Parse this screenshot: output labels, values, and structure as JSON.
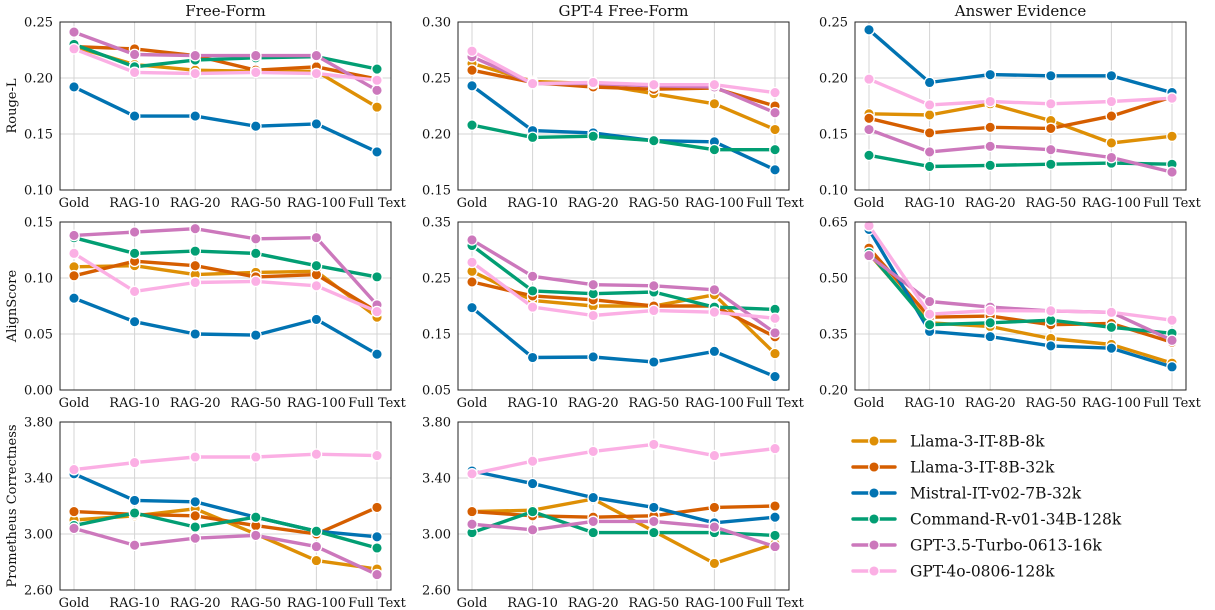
{
  "colors": {
    "Llama-3-IT-8B-8k": "#de8f05",
    "Llama-3-IT-8B-32k": "#d55e00",
    "Mistral-IT-v02-7B-32k": "#0173b2",
    "Command-R-v01-34B-128k": "#029e73",
    "GPT-3.5-Turbo-0613-16k": "#cc78bc",
    "GPT-4o-0806-128k": "#fbafe4"
  },
  "legend": [
    "Llama-3-IT-8B-8k",
    "Llama-3-IT-8B-32k",
    "Mistral-IT-v02-7B-32k",
    "Command-R-v01-34B-128k",
    "GPT-3.5-Turbo-0613-16k",
    "GPT-4o-0806-128k"
  ],
  "chart_data": [
    {
      "type": "line",
      "title": "Free-Form",
      "ylabel": "Rouge-L",
      "grid": true,
      "categories": [
        "Gold",
        "RAG-10",
        "RAG-20",
        "RAG-50",
        "RAG-100",
        "Full Text"
      ],
      "ylim": [
        0.1,
        0.25
      ],
      "yticks": [
        "0.10",
        "0.15",
        "0.20",
        "0.25"
      ],
      "series": [
        {
          "name": "Llama-3-IT-8B-8k",
          "values": [
            0.228,
            0.212,
            0.207,
            0.206,
            0.206,
            0.174
          ]
        },
        {
          "name": "Llama-3-IT-8B-32k",
          "values": [
            0.228,
            0.226,
            0.22,
            0.207,
            0.21,
            0.199
          ]
        },
        {
          "name": "Mistral-IT-v02-7B-32k",
          "values": [
            0.192,
            0.166,
            0.166,
            0.157,
            0.159,
            0.134
          ]
        },
        {
          "name": "Command-R-v01-34B-128k",
          "values": [
            0.23,
            0.21,
            0.216,
            0.218,
            0.219,
            0.208
          ]
        },
        {
          "name": "GPT-3.5-Turbo-0613-16k",
          "values": [
            0.241,
            0.221,
            0.22,
            0.22,
            0.22,
            0.189
          ]
        },
        {
          "name": "GPT-4o-0806-128k",
          "values": [
            0.226,
            0.205,
            0.204,
            0.205,
            0.204,
            0.198
          ]
        }
      ]
    },
    {
      "type": "line",
      "title": "GPT-4 Free-Form",
      "ylabel": "",
      "grid": true,
      "categories": [
        "Gold",
        "RAG-10",
        "RAG-20",
        "RAG-50",
        "RAG-100",
        "Full Text"
      ],
      "ylim": [
        0.15,
        0.3
      ],
      "yticks": [
        "0.15",
        "0.20",
        "0.25",
        "0.30"
      ],
      "series": [
        {
          "name": "Llama-3-IT-8B-8k",
          "values": [
            0.263,
            0.247,
            0.245,
            0.236,
            0.227,
            0.204
          ]
        },
        {
          "name": "Llama-3-IT-8B-32k",
          "values": [
            0.257,
            0.246,
            0.242,
            0.24,
            0.241,
            0.225
          ]
        },
        {
          "name": "Mistral-IT-v02-7B-32k",
          "values": [
            0.243,
            0.203,
            0.201,
            0.194,
            0.193,
            0.168
          ]
        },
        {
          "name": "Command-R-v01-34B-128k",
          "values": [
            0.208,
            0.197,
            0.198,
            0.194,
            0.186,
            0.186
          ]
        },
        {
          "name": "GPT-3.5-Turbo-0613-16k",
          "values": [
            0.269,
            0.245,
            0.245,
            0.243,
            0.242,
            0.219
          ]
        },
        {
          "name": "GPT-4o-0806-128k",
          "values": [
            0.274,
            0.245,
            0.246,
            0.244,
            0.244,
            0.237
          ]
        }
      ]
    },
    {
      "type": "line",
      "title": "Answer Evidence",
      "ylabel": "",
      "grid": true,
      "categories": [
        "Gold",
        "RAG-10",
        "RAG-20",
        "RAG-50",
        "RAG-100",
        "Full Text"
      ],
      "ylim": [
        0.1,
        0.25
      ],
      "yticks": [
        "0.10",
        "0.15",
        "0.20",
        "0.25"
      ],
      "series": [
        {
          "name": "Llama-3-IT-8B-8k",
          "values": [
            0.168,
            0.167,
            0.177,
            0.162,
            0.142,
            0.148
          ]
        },
        {
          "name": "Llama-3-IT-8B-32k",
          "values": [
            0.164,
            0.151,
            0.156,
            0.155,
            0.166,
            0.183
          ]
        },
        {
          "name": "Mistral-IT-v02-7B-32k",
          "values": [
            0.243,
            0.196,
            0.203,
            0.202,
            0.202,
            0.187
          ]
        },
        {
          "name": "Command-R-v01-34B-128k",
          "values": [
            0.131,
            0.121,
            0.122,
            0.123,
            0.124,
            0.123
          ]
        },
        {
          "name": "GPT-3.5-Turbo-0613-16k",
          "values": [
            0.154,
            0.134,
            0.139,
            0.136,
            0.129,
            0.116
          ]
        },
        {
          "name": "GPT-4o-0806-128k",
          "values": [
            0.199,
            0.176,
            0.179,
            0.177,
            0.179,
            0.182
          ]
        }
      ]
    },
    {
      "type": "line",
      "title": "",
      "ylabel": "AlignScore",
      "grid": true,
      "categories": [
        "Gold",
        "RAG-10",
        "RAG-20",
        "RAG-50",
        "RAG-100",
        "Full Text"
      ],
      "ylim": [
        0.0,
        0.15
      ],
      "yticks": [
        "0.00",
        "0.05",
        "0.10",
        "0.15"
      ],
      "series": [
        {
          "name": "Llama-3-IT-8B-8k",
          "values": [
            0.11,
            0.111,
            0.103,
            0.105,
            0.106,
            0.065
          ]
        },
        {
          "name": "Llama-3-IT-8B-32k",
          "values": [
            0.102,
            0.115,
            0.111,
            0.101,
            0.103,
            0.07
          ]
        },
        {
          "name": "Mistral-IT-v02-7B-32k",
          "values": [
            0.082,
            0.061,
            0.05,
            0.049,
            0.063,
            0.032
          ]
        },
        {
          "name": "Command-R-v01-34B-128k",
          "values": [
            0.136,
            0.122,
            0.124,
            0.122,
            0.111,
            0.101
          ]
        },
        {
          "name": "GPT-3.5-Turbo-0613-16k",
          "values": [
            0.138,
            0.141,
            0.144,
            0.135,
            0.136,
            0.076
          ]
        },
        {
          "name": "GPT-4o-0806-128k",
          "values": [
            0.122,
            0.088,
            0.096,
            0.097,
            0.093,
            0.07
          ]
        }
      ]
    },
    {
      "type": "line",
      "title": "",
      "ylabel": "",
      "grid": true,
      "categories": [
        "Gold",
        "RAG-10",
        "RAG-20",
        "RAG-50",
        "RAG-100",
        "Full Text"
      ],
      "ylim": [
        0.05,
        0.35
      ],
      "yticks": [
        "0.05",
        "0.15",
        "0.25",
        "0.35"
      ],
      "series": [
        {
          "name": "Llama-3-IT-8B-8k",
          "values": [
            0.262,
            0.21,
            0.2,
            0.2,
            0.22,
            0.115
          ]
        },
        {
          "name": "Llama-3-IT-8B-32k",
          "values": [
            0.243,
            0.218,
            0.211,
            0.2,
            0.2,
            0.145
          ]
        },
        {
          "name": "Mistral-IT-v02-7B-32k",
          "values": [
            0.197,
            0.108,
            0.109,
            0.1,
            0.119,
            0.074
          ]
        },
        {
          "name": "Command-R-v01-34B-128k",
          "values": [
            0.308,
            0.227,
            0.222,
            0.225,
            0.198,
            0.194
          ]
        },
        {
          "name": "GPT-3.5-Turbo-0613-16k",
          "values": [
            0.318,
            0.253,
            0.238,
            0.236,
            0.229,
            0.152
          ]
        },
        {
          "name": "GPT-4o-0806-128k",
          "values": [
            0.278,
            0.198,
            0.183,
            0.192,
            0.189,
            0.178
          ]
        }
      ]
    },
    {
      "type": "line",
      "title": "",
      "ylabel": "",
      "grid": true,
      "categories": [
        "Gold",
        "RAG-10",
        "RAG-20",
        "RAG-50",
        "RAG-100",
        "Full Text"
      ],
      "ylim": [
        0.2,
        0.65
      ],
      "yticks": [
        "0.20",
        "0.35",
        "0.50",
        "0.65"
      ],
      "series": [
        {
          "name": "Llama-3-IT-8B-8k",
          "values": [
            0.565,
            0.38,
            0.37,
            0.338,
            0.322,
            0.272
          ]
        },
        {
          "name": "Llama-3-IT-8B-32k",
          "values": [
            0.58,
            0.395,
            0.398,
            0.375,
            0.378,
            0.328
          ]
        },
        {
          "name": "Mistral-IT-v02-7B-32k",
          "values": [
            0.63,
            0.357,
            0.343,
            0.318,
            0.312,
            0.262
          ]
        },
        {
          "name": "Command-R-v01-34B-128k",
          "values": [
            0.568,
            0.375,
            0.38,
            0.387,
            0.368,
            0.352
          ]
        },
        {
          "name": "GPT-3.5-Turbo-0613-16k",
          "values": [
            0.56,
            0.437,
            0.422,
            0.412,
            0.408,
            0.333
          ]
        },
        {
          "name": "GPT-4o-0806-128k",
          "values": [
            0.64,
            0.403,
            0.413,
            0.412,
            0.408,
            0.387
          ]
        }
      ]
    },
    {
      "type": "line",
      "title": "",
      "ylabel": "Prometheus Correctness",
      "grid": true,
      "categories": [
        "Gold",
        "RAG-10",
        "RAG-20",
        "RAG-50",
        "RAG-100",
        "Full Text"
      ],
      "ylim": [
        2.6,
        3.8
      ],
      "yticks": [
        "2.60",
        "3.00",
        "3.40",
        "3.80"
      ],
      "series": [
        {
          "name": "Llama-3-IT-8B-8k",
          "values": [
            3.1,
            3.13,
            3.18,
            3.0,
            2.81,
            2.75
          ]
        },
        {
          "name": "Llama-3-IT-8B-32k",
          "values": [
            3.16,
            3.14,
            3.13,
            3.06,
            3.0,
            3.19
          ]
        },
        {
          "name": "Mistral-IT-v02-7B-32k",
          "values": [
            3.43,
            3.24,
            3.23,
            3.12,
            3.02,
            2.98
          ]
        },
        {
          "name": "Command-R-v01-34B-128k",
          "values": [
            3.06,
            3.15,
            3.05,
            3.12,
            3.02,
            2.9
          ]
        },
        {
          "name": "GPT-3.5-Turbo-0613-16k",
          "values": [
            3.04,
            2.92,
            2.97,
            2.99,
            2.91,
            2.71
          ]
        },
        {
          "name": "GPT-4o-0806-128k",
          "values": [
            3.46,
            3.51,
            3.55,
            3.55,
            3.57,
            3.56
          ]
        }
      ]
    },
    {
      "type": "line",
      "title": "",
      "ylabel": "",
      "grid": true,
      "categories": [
        "Gold",
        "RAG-10",
        "RAG-20",
        "RAG-50",
        "RAG-100",
        "Full Text"
      ],
      "ylim": [
        2.6,
        3.8
      ],
      "yticks": [
        "2.60",
        "3.00",
        "3.40",
        "3.80"
      ],
      "series": [
        {
          "name": "Llama-3-IT-8B-8k",
          "values": [
            3.16,
            3.17,
            3.25,
            3.02,
            2.79,
            2.93
          ]
        },
        {
          "name": "Llama-3-IT-8B-32k",
          "values": [
            3.16,
            3.13,
            3.12,
            3.13,
            3.19,
            3.2
          ]
        },
        {
          "name": "Mistral-IT-v02-7B-32k",
          "values": [
            3.45,
            3.36,
            3.26,
            3.19,
            3.08,
            3.12
          ]
        },
        {
          "name": "Command-R-v01-34B-128k",
          "values": [
            3.01,
            3.16,
            3.01,
            3.01,
            3.01,
            2.99
          ]
        },
        {
          "name": "GPT-3.5-Turbo-0613-16k",
          "values": [
            3.07,
            3.03,
            3.09,
            3.09,
            3.05,
            2.91
          ]
        },
        {
          "name": "GPT-4o-0806-128k",
          "values": [
            3.43,
            3.52,
            3.59,
            3.64,
            3.56,
            3.61
          ]
        }
      ]
    }
  ]
}
